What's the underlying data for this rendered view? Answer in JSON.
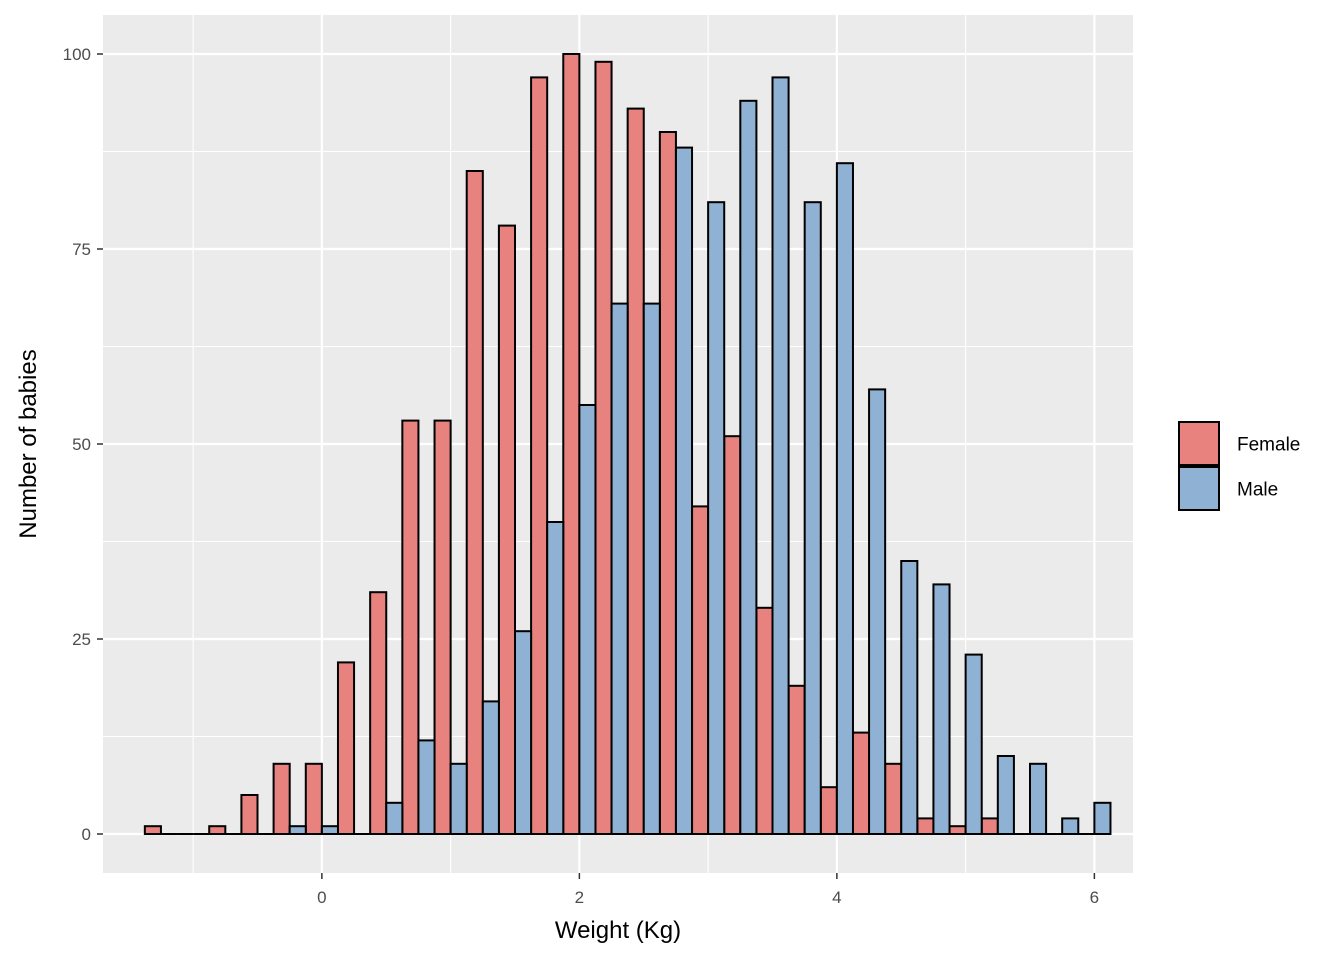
{
  "chart_data": {
    "type": "bar",
    "title": "",
    "xlabel": "Weight (Kg)",
    "ylabel": "Number of babies",
    "xlim": [
      -1.7,
      6.3
    ],
    "ylim": [
      -5,
      105
    ],
    "x_ticks": [
      0,
      2,
      4,
      6
    ],
    "y_ticks": [
      0,
      25,
      50,
      75,
      100
    ],
    "grid": true,
    "legend_position": "right",
    "bin_centers": [
      -1.25,
      -1.0,
      -0.75,
      -0.5,
      -0.25,
      0.0,
      0.25,
      0.5,
      0.75,
      1.0,
      1.25,
      1.5,
      1.75,
      2.0,
      2.25,
      2.5,
      2.75,
      3.0,
      3.25,
      3.5,
      3.75,
      4.0,
      4.25,
      4.5,
      4.75,
      5.0,
      5.25,
      5.5,
      5.75,
      6.0
    ],
    "series": [
      {
        "name": "Female",
        "color": "#e8827f",
        "values": [
          1,
          0,
          1,
          5,
          9,
          9,
          22,
          31,
          53,
          53,
          85,
          78,
          97,
          100,
          99,
          93,
          90,
          42,
          51,
          29,
          19,
          6,
          13,
          9,
          2,
          1,
          2,
          0,
          0,
          0
        ]
      },
      {
        "name": "Male",
        "color": "#8fb1d3",
        "values": [
          0,
          0,
          0,
          0,
          1,
          1,
          0,
          4,
          12,
          9,
          17,
          26,
          40,
          55,
          68,
          68,
          88,
          81,
          94,
          97,
          81,
          86,
          57,
          35,
          32,
          23,
          10,
          9,
          2,
          4
        ]
      }
    ]
  }
}
